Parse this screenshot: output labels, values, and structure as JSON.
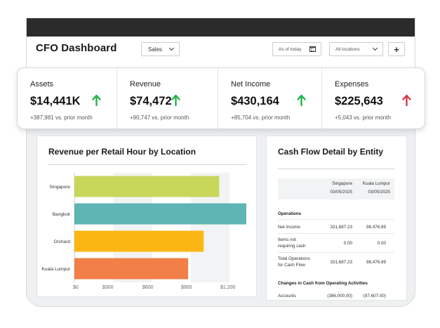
{
  "header": {
    "title": "CFO Dashboard",
    "sales_filter": "Sales",
    "date_filter": "As of today",
    "location_filter": "All locations",
    "add_label": "+"
  },
  "kpis": [
    {
      "label": "Assets",
      "value": "$14,441K",
      "change": "+387,981 vs. prior month",
      "trend": "up",
      "color": "#1fb34a"
    },
    {
      "label": "Revenue",
      "value": "$74,472",
      "change": "+90,747 vs. prior month",
      "trend": "up",
      "color": "#1fb34a"
    },
    {
      "label": "Net Income",
      "value": "$430,164",
      "change": "+85,704 vs. prior month",
      "trend": "up",
      "color": "#1fb34a"
    },
    {
      "label": "Expenses",
      "value": "$225,643",
      "change": "+5,043 vs. prior month",
      "trend": "up",
      "color": "#d63a4a"
    }
  ],
  "revenue_chart": {
    "title": "Revenue per Retail Hour by Location",
    "tick_labels": [
      "$0",
      "$300",
      "$600",
      "$900",
      "$1,200"
    ]
  },
  "chart_data": {
    "type": "bar",
    "orientation": "horizontal",
    "title": "Revenue per Retail Hour by Location",
    "categories": [
      "Singapore",
      "Bangkok",
      "Orchard",
      "Kuala Lumpur"
    ],
    "values": [
      1120,
      1330,
      1000,
      880
    ],
    "colors": [
      "#c8d65a",
      "#5fb4b4",
      "#fcb614",
      "#f17f47"
    ],
    "xlim": [
      0,
      1330
    ],
    "xticks": [
      0,
      300,
      600,
      900,
      1200
    ],
    "grid": true
  },
  "cash_flow": {
    "title": "Cash Flow Detail by Entity",
    "columns": [
      {
        "entity": "Singapore",
        "date": "03/05/2025"
      },
      {
        "entity": "Kuala Lumpur",
        "date": "03/05/2025"
      }
    ],
    "section_operations": "Operations",
    "rows": [
      {
        "label": "Net income",
        "label2": "",
        "v1": "331,687.23",
        "v2": "98,476.89"
      },
      {
        "label": "Items not",
        "label2": "requiring cash",
        "v1": "0.00",
        "v2": "0.00"
      },
      {
        "label": "Total Operations",
        "label2": "for Cash Flow",
        "v1": "331,687.23",
        "v2": "98,476.89"
      }
    ],
    "section_changes": "Changes in Cash from Operating Activities",
    "accounts_row": {
      "label": "Accounts",
      "v1": "(386,000.00)",
      "v2": "(97,607.00)"
    }
  }
}
